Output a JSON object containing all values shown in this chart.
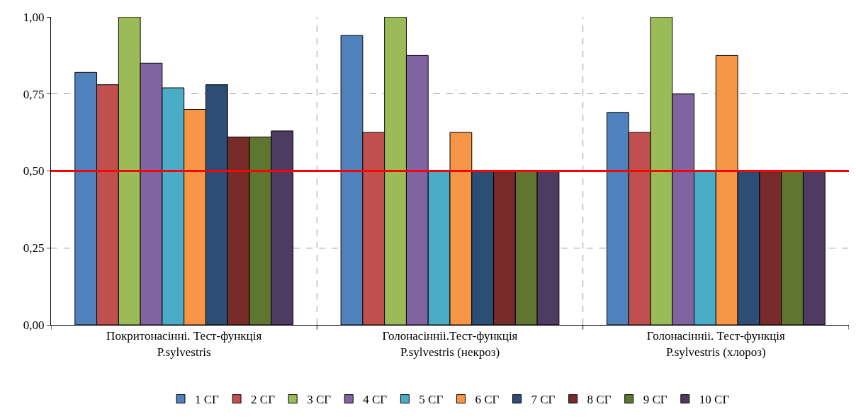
{
  "chart_data": {
    "type": "bar",
    "categories": [
      "Покритонасінні. Тест-функція\nP.sylvestris",
      "Голонасінніі.Тест-функція\nP.sylvestris (некроз)",
      "Голонасінніі. Тест-функція\nP.sylvestris (хлороз)"
    ],
    "series": [
      {
        "name": "1 СГ",
        "color": "#4f81bd",
        "values": [
          0.82,
          0.94,
          0.69
        ]
      },
      {
        "name": "2 СГ",
        "color": "#c0504d",
        "values": [
          0.78,
          0.625,
          0.625
        ]
      },
      {
        "name": "3 СГ",
        "color": "#9bbb59",
        "values": [
          1.0,
          1.0,
          1.0
        ]
      },
      {
        "name": "4 СГ",
        "color": "#8064a2",
        "values": [
          0.85,
          0.875,
          0.75
        ]
      },
      {
        "name": "5 СГ",
        "color": "#4bacc6",
        "values": [
          0.77,
          0.5,
          0.5
        ]
      },
      {
        "name": "6 СГ",
        "color": "#f79646",
        "values": [
          0.7,
          0.625,
          0.875
        ]
      },
      {
        "name": "7 СГ",
        "color": "#2c4d75",
        "values": [
          0.78,
          0.5,
          0.5
        ]
      },
      {
        "name": "8 СГ",
        "color": "#772c2a",
        "values": [
          0.61,
          0.5,
          0.5
        ]
      },
      {
        "name": "9 СГ",
        "color": "#5f7530",
        "values": [
          0.61,
          0.5,
          0.5
        ]
      },
      {
        "name": "10 СГ",
        "color": "#4d3b62",
        "values": [
          0.63,
          0.5,
          0.5
        ]
      }
    ],
    "ylim": [
      0,
      1
    ],
    "yticks": [
      {
        "value": 0,
        "label": "0,00"
      },
      {
        "value": 0.25,
        "label": "0,25"
      },
      {
        "value": 0.5,
        "label": "0,50"
      },
      {
        "value": 0.75,
        "label": "0,75"
      },
      {
        "value": 1,
        "label": "1,00"
      }
    ],
    "ref_lines": [
      {
        "axis": "y",
        "value": 0.5,
        "color": "#ff0000"
      }
    ],
    "grid": true,
    "legend": "bottom"
  }
}
